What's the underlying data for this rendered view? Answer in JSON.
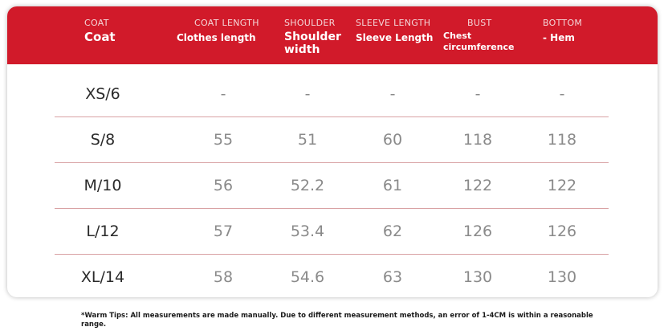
{
  "colors": {
    "header_bg": "#d11a2a",
    "divider": "#d9a2a4"
  },
  "header": [
    {
      "en": "COAT",
      "label": "Coat"
    },
    {
      "en": "COAT LENGTH",
      "label": "Clothes length"
    },
    {
      "en": "SHOULDER",
      "label": "Shoulder width"
    },
    {
      "en": "SLEEVE LENGTH",
      "label": "Sleeve Length"
    },
    {
      "en": "BUST",
      "label": "Chest circumference"
    },
    {
      "en": "BOTTOM",
      "label": "- Hem"
    }
  ],
  "rows": [
    {
      "size": "XS/6",
      "values": [
        "-",
        "-",
        "-",
        "-",
        "-"
      ]
    },
    {
      "size": "S/8",
      "values": [
        "55",
        "51",
        "60",
        "118",
        "118"
      ]
    },
    {
      "size": "M/10",
      "values": [
        "56",
        "52.2",
        "61",
        "122",
        "122"
      ]
    },
    {
      "size": "L/12",
      "values": [
        "57",
        "53.4",
        "62",
        "126",
        "126"
      ]
    },
    {
      "size": "XL/14",
      "values": [
        "58",
        "54.6",
        "63",
        "130",
        "130"
      ]
    }
  ],
  "tip": "*Warm Tips: All measurements are made manually. Due to different measurement methods, an error of 1-4CM is within a reasonable range."
}
